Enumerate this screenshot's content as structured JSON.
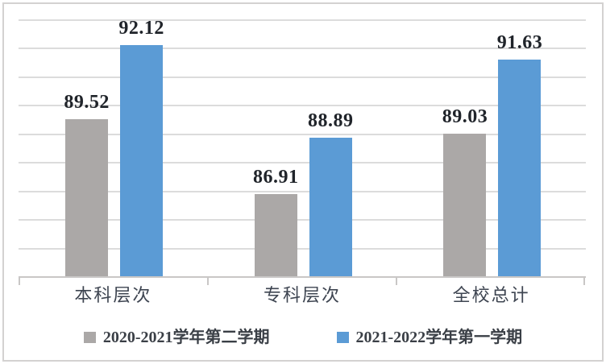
{
  "chart_data": {
    "type": "bar",
    "title": "",
    "categories": [
      "本科层次",
      "专科层次",
      "全校总计"
    ],
    "series": [
      {
        "name": "2020-2021学年第二学期",
        "color": "#aba8a7",
        "values": [
          89.52,
          86.91,
          89.03
        ]
      },
      {
        "name": "2021-2022学年第一学期",
        "color": "#5b9bd5",
        "values": [
          92.12,
          88.89,
          91.63
        ]
      }
    ],
    "data_labels": [
      [
        "89.52",
        "86.91",
        "89.03"
      ],
      [
        "92.12",
        "88.89",
        "91.63"
      ]
    ],
    "ylim": [
      84,
      93
    ],
    "grid_step": 1,
    "grid": true,
    "y_axis_labels_visible": false,
    "legend_position": "bottom",
    "colors": {
      "series1_gray": "#aba8a7",
      "series2_blue": "#5b9bd5",
      "gridline": "#dcdcdc",
      "axis_line": "#c9c7c6",
      "outer_border": "#d4d2d1",
      "data_label_text": "#20242a",
      "category_text": "#3e4551",
      "legend_text": "#3a3f46",
      "background": "#ffffff"
    }
  }
}
